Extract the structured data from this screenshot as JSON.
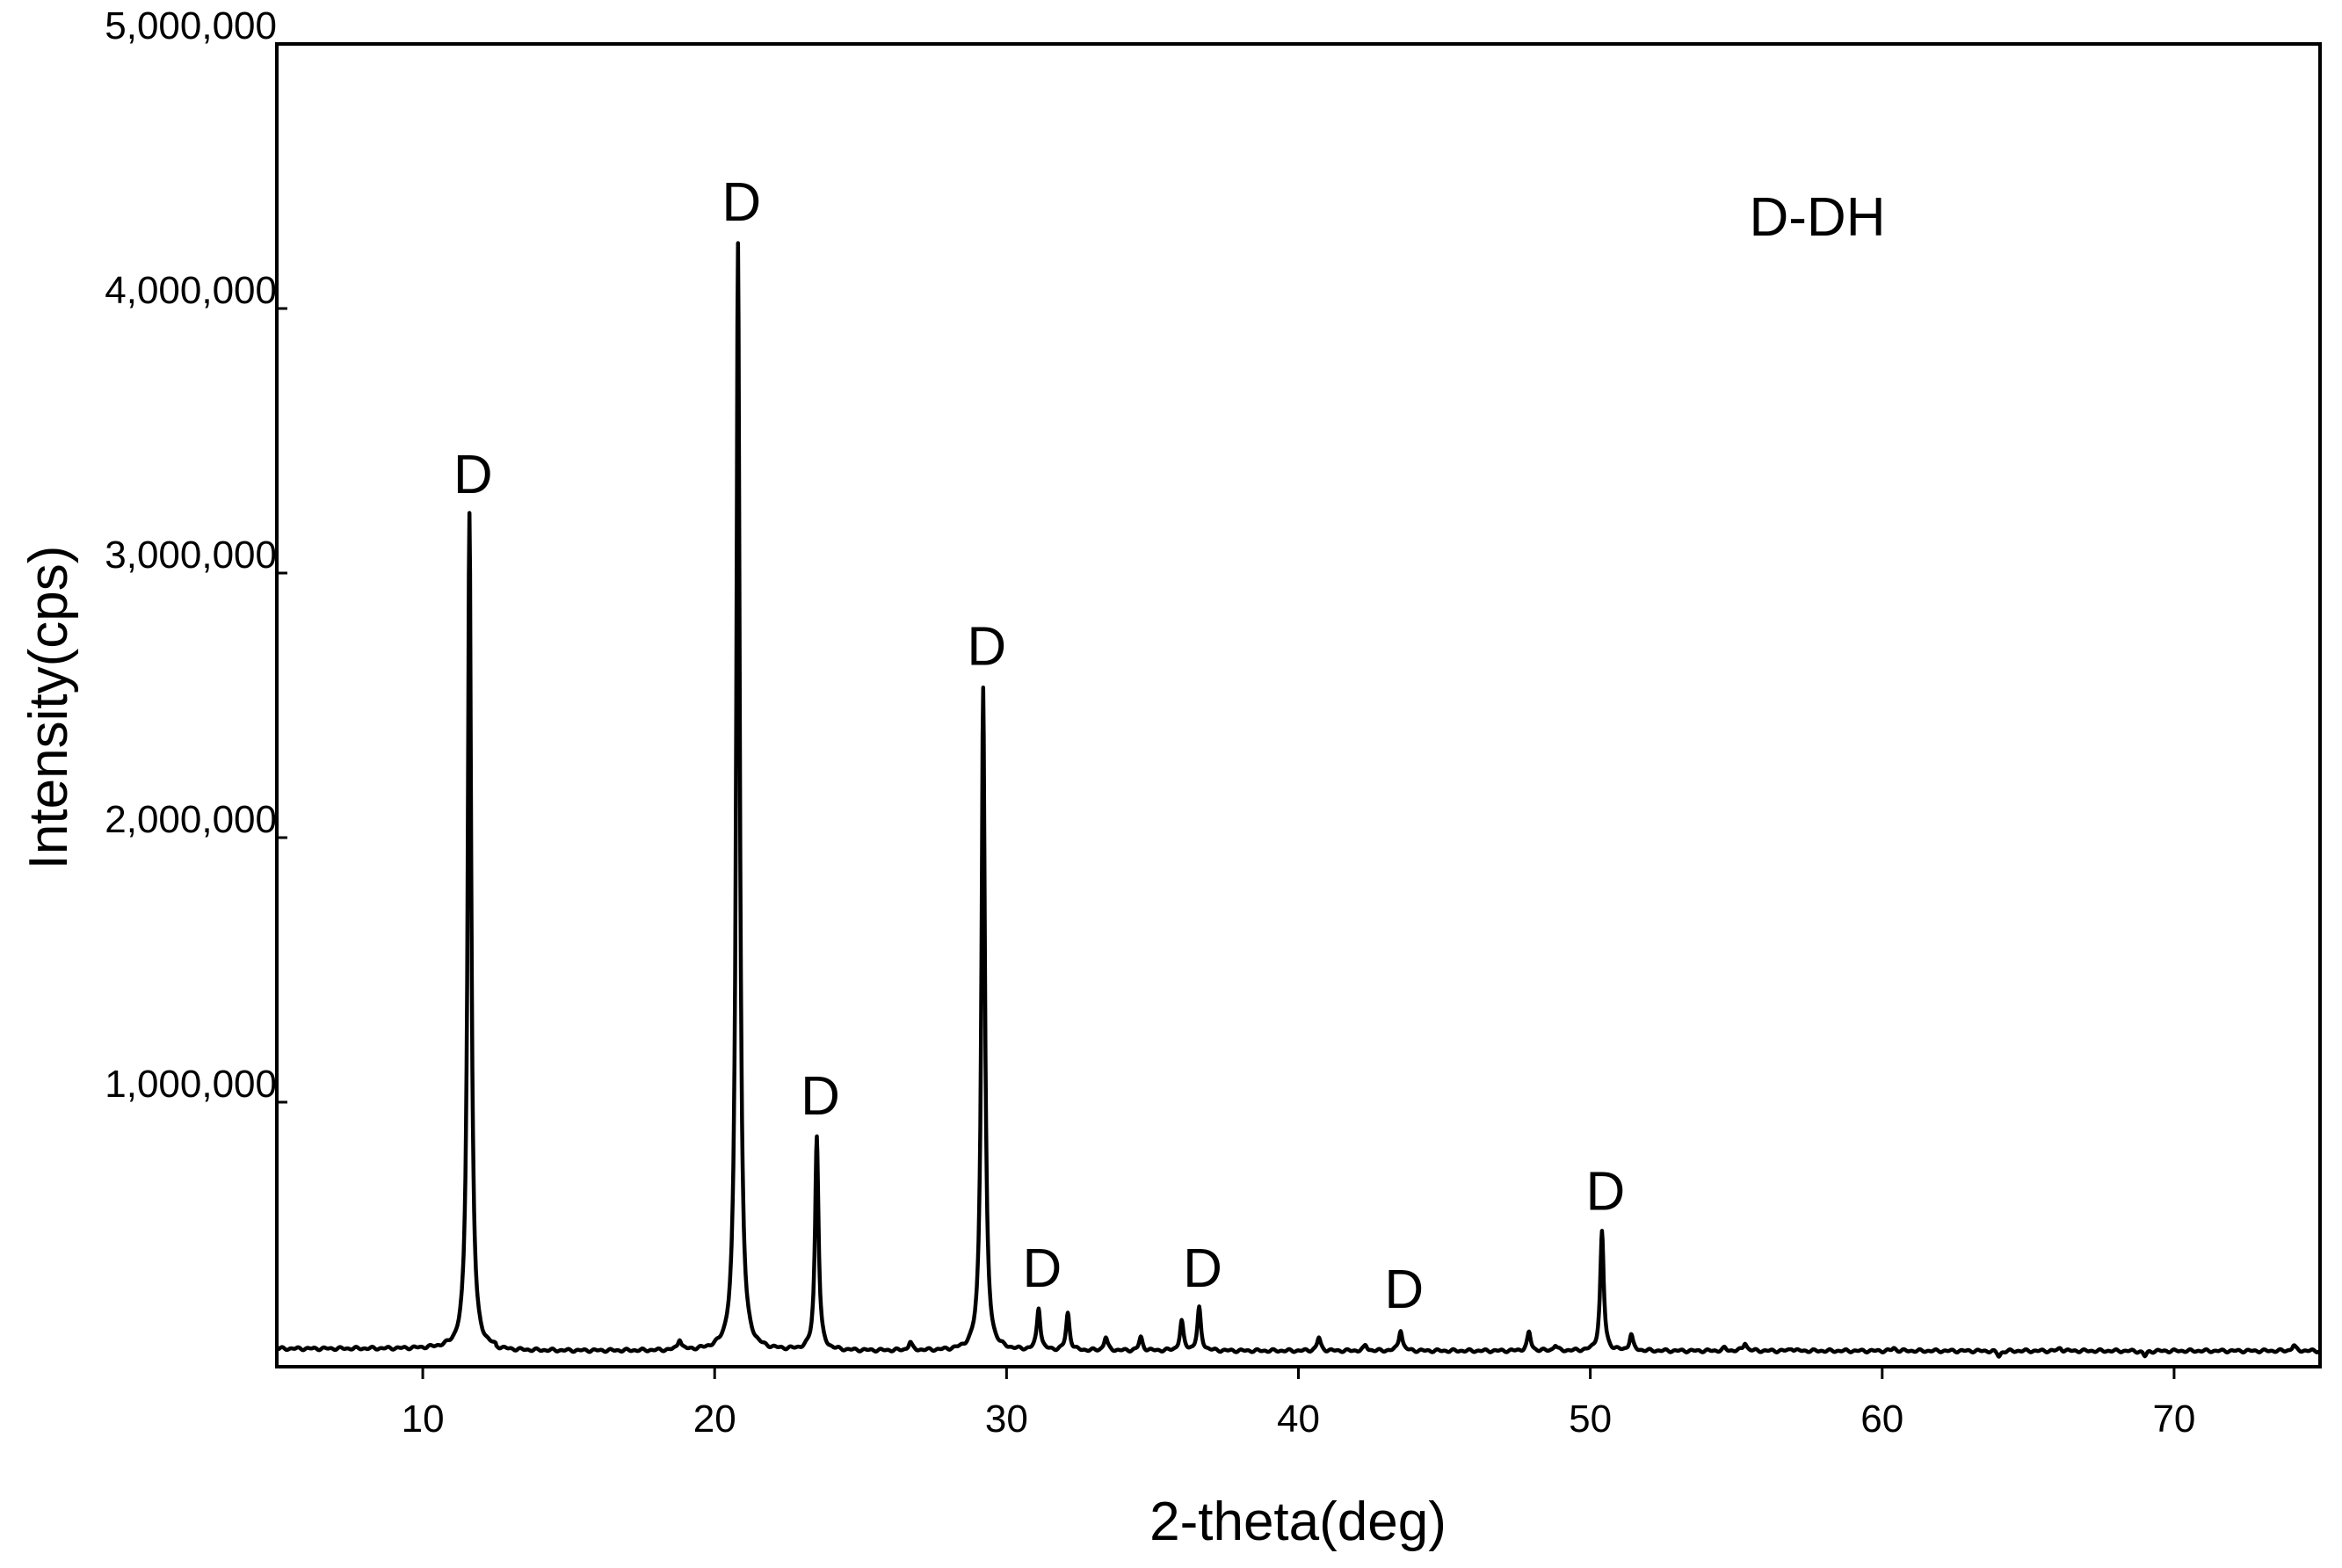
{
  "chart_data": {
    "type": "line",
    "sample_label": "D-DH",
    "xlabel": "2-theta(deg)",
    "ylabel": "Intensity(cps)",
    "xlim": [
      5,
      75
    ],
    "ylim": [
      0,
      5000000
    ],
    "grid": false,
    "x_ticks": [
      10,
      20,
      30,
      40,
      50,
      60,
      70
    ],
    "x_tick_labels": [
      "10",
      "20",
      "30",
      "40",
      "50",
      "60",
      "70"
    ],
    "y_ticks": [
      1000000,
      2000000,
      3000000,
      4000000,
      5000000
    ],
    "y_tick_labels": [
      "1,000,000",
      "2,000,000",
      "3,000,000",
      "4,000,000",
      "5,000,000"
    ],
    "baseline": 60000,
    "peaks": [
      {
        "x": 11.6,
        "y": 3220000,
        "label": "D"
      },
      {
        "x": 18.8,
        "y": 100000,
        "label": ""
      },
      {
        "x": 20.8,
        "y": 4250000,
        "label": "D"
      },
      {
        "x": 23.5,
        "y": 870000,
        "label": "D"
      },
      {
        "x": 26.7,
        "y": 90000,
        "label": ""
      },
      {
        "x": 29.2,
        "y": 2570000,
        "label": "D"
      },
      {
        "x": 31.1,
        "y": 220000,
        "label": "D"
      },
      {
        "x": 32.1,
        "y": 200000,
        "label": ""
      },
      {
        "x": 33.4,
        "y": 110000,
        "label": ""
      },
      {
        "x": 34.6,
        "y": 110000,
        "label": ""
      },
      {
        "x": 36.0,
        "y": 170000,
        "label": ""
      },
      {
        "x": 36.6,
        "y": 220000,
        "label": "D"
      },
      {
        "x": 40.7,
        "y": 110000,
        "label": ""
      },
      {
        "x": 42.3,
        "y": 80000,
        "label": ""
      },
      {
        "x": 43.5,
        "y": 140000,
        "label": "D"
      },
      {
        "x": 45.6,
        "y": 60000,
        "label": ""
      },
      {
        "x": 47.9,
        "y": 130000,
        "label": ""
      },
      {
        "x": 48.8,
        "y": 80000,
        "label": ""
      },
      {
        "x": 50.4,
        "y": 510000,
        "label": "D"
      },
      {
        "x": 51.4,
        "y": 120000,
        "label": ""
      },
      {
        "x": 54.6,
        "y": 70000,
        "label": ""
      },
      {
        "x": 55.3,
        "y": 90000,
        "label": ""
      },
      {
        "x": 56.9,
        "y": 70000,
        "label": ""
      },
      {
        "x": 60.4,
        "y": 70000,
        "label": ""
      },
      {
        "x": 64.0,
        "y": 40000,
        "label": ""
      },
      {
        "x": 66.1,
        "y": 70000,
        "label": ""
      },
      {
        "x": 69.0,
        "y": 40000,
        "label": ""
      },
      {
        "x": 74.1,
        "y": 80000,
        "label": ""
      }
    ]
  }
}
